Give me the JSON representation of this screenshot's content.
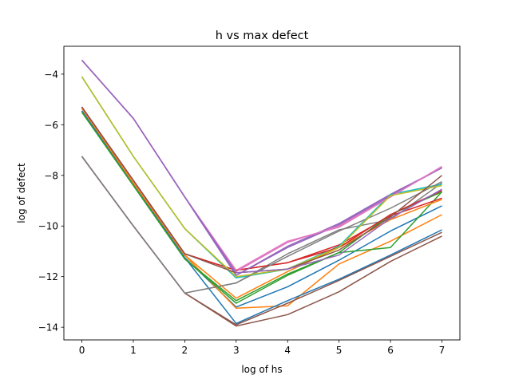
{
  "chart_data": {
    "type": "line",
    "title": "h vs max defect",
    "xlabel": "log of hs",
    "ylabel": "log of defect",
    "x": [
      0,
      1,
      2,
      3,
      4,
      5,
      6,
      7
    ],
    "xlim": [
      -0.35,
      7.35
    ],
    "ylim": [
      -14.5,
      -2.9
    ],
    "xticks": [
      0,
      1,
      2,
      3,
      4,
      5,
      6,
      7
    ],
    "yticks": [
      -14,
      -12,
      -10,
      -8,
      -6,
      -4
    ],
    "grid": false,
    "legend": "none",
    "series": [
      {
        "color": "#1f77b4",
        "values": [
          -5.45,
          -8.35,
          -11.25,
          -13.2,
          -12.4,
          -11.35,
          -10.2,
          -9.2
        ]
      },
      {
        "color": "#ff7f0e",
        "values": [
          -5.35,
          -8.3,
          -11.15,
          -13.25,
          -13.15,
          -11.5,
          -10.6,
          -9.55
        ]
      },
      {
        "color": "#2ca02c",
        "values": [
          -5.5,
          -8.4,
          -11.3,
          -13.05,
          -11.95,
          -11.05,
          -10.85,
          -8.65
        ]
      },
      {
        "color": "#d62728",
        "values": [
          -5.3,
          -8.2,
          -11.1,
          -11.75,
          -11.45,
          -10.75,
          -9.6,
          -8.9
        ]
      },
      {
        "color": "#9467bd",
        "values": [
          -3.45,
          -5.75,
          -8.85,
          -11.95,
          -10.8,
          -9.9,
          -8.75,
          -7.7
        ]
      },
      {
        "color": "#8c564b",
        "values": [
          -7.25,
          -10.0,
          -12.65,
          -13.95,
          -13.5,
          -12.6,
          -11.4,
          -10.4
        ]
      },
      {
        "color": "#e377c2",
        "values": [
          -3.45,
          -5.75,
          -8.85,
          -11.75,
          -10.6,
          -10.05,
          -8.85,
          -7.65
        ]
      },
      {
        "color": "#7f7f7f",
        "values": [
          -7.25,
          -10.0,
          -12.65,
          -12.25,
          -11.1,
          -10.15,
          -9.75,
          -8.3
        ]
      },
      {
        "color": "#bcbd22",
        "values": [
          -4.1,
          -7.25,
          -10.1,
          -12.05,
          -11.7,
          -10.8,
          -8.75,
          -8.35
        ]
      },
      {
        "color": "#17becf",
        "values": [
          -4.1,
          -7.25,
          -10.1,
          -12.05,
          -11.7,
          -10.8,
          -8.75,
          -8.35
        ]
      },
      {
        "color": "#1f77b4",
        "values": [
          -5.45,
          -8.35,
          -11.25,
          -13.85,
          -12.95,
          -12.1,
          -11.15,
          -10.15
        ]
      },
      {
        "color": "#ff7f0e",
        "values": [
          -5.35,
          -8.3,
          -11.15,
          -12.85,
          -11.8,
          -10.85,
          -9.75,
          -8.95
        ]
      },
      {
        "color": "#2ca02c",
        "values": [
          -5.5,
          -8.4,
          -11.3,
          -12.95,
          -11.9,
          -11.05,
          -9.55,
          -8.65
        ]
      },
      {
        "color": "#d62728",
        "values": [
          -5.3,
          -8.2,
          -11.1,
          -11.75,
          -11.45,
          -10.85,
          -9.55,
          -8.6
        ]
      },
      {
        "color": "#9467bd",
        "values": [
          -3.45,
          -5.75,
          -8.85,
          -11.95,
          -10.85,
          -9.95,
          -8.8,
          -7.7
        ]
      },
      {
        "color": "#8c564b",
        "values": [
          -7.25,
          -10.0,
          -12.65,
          -13.9,
          -13.05,
          -12.15,
          -11.2,
          -10.25
        ]
      },
      {
        "color": "#e377c2",
        "values": [
          -3.45,
          -5.75,
          -8.85,
          -11.8,
          -10.65,
          -10.0,
          -8.85,
          -7.65
        ]
      },
      {
        "color": "#7f7f7f",
        "values": [
          -7.25,
          -10.0,
          -12.65,
          -12.25,
          -11.2,
          -10.2,
          -9.3,
          -8.25
        ]
      },
      {
        "color": "#bcbd22",
        "values": [
          -4.1,
          -7.25,
          -10.1,
          -12.0,
          -11.7,
          -10.85,
          -8.8,
          -8.4
        ]
      },
      {
        "color": "#8c564b",
        "values": [
          -5.3,
          -8.2,
          -11.1,
          -11.85,
          -11.7,
          -10.95,
          -9.65,
          -8.0
        ]
      },
      {
        "color": "#9467bd",
        "values": [
          -3.45,
          -5.75,
          -8.85,
          -11.85,
          -11.7,
          -11.15,
          -9.7,
          -8.55
        ]
      }
    ]
  }
}
